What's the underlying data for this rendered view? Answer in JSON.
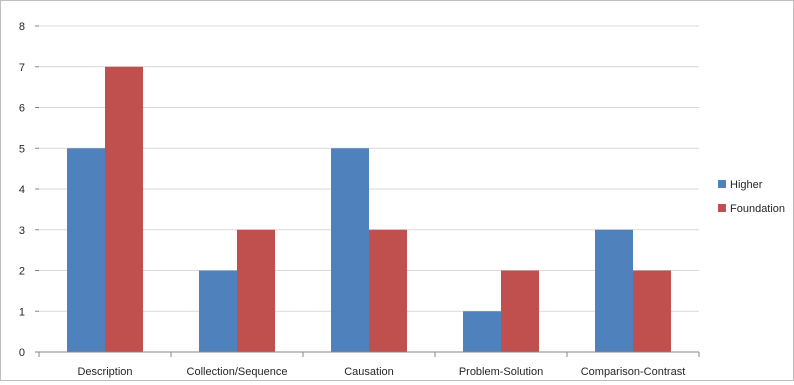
{
  "chart_data": {
    "type": "bar",
    "categories": [
      "Description",
      "Collection/Sequence",
      "Causation",
      "Problem-Solution",
      "Comparison-Contrast"
    ],
    "series": [
      {
        "name": "Higher",
        "values": [
          5,
          2,
          5,
          1,
          3
        ],
        "color": "#4f81bd"
      },
      {
        "name": "Foundation",
        "values": [
          7,
          3,
          3,
          2,
          2
        ],
        "color": "#c0504d"
      }
    ],
    "ylim": [
      0,
      8
    ],
    "yticks": [
      0,
      1,
      2,
      3,
      4,
      5,
      6,
      7,
      8
    ],
    "grid": true,
    "legend_position": "right"
  }
}
